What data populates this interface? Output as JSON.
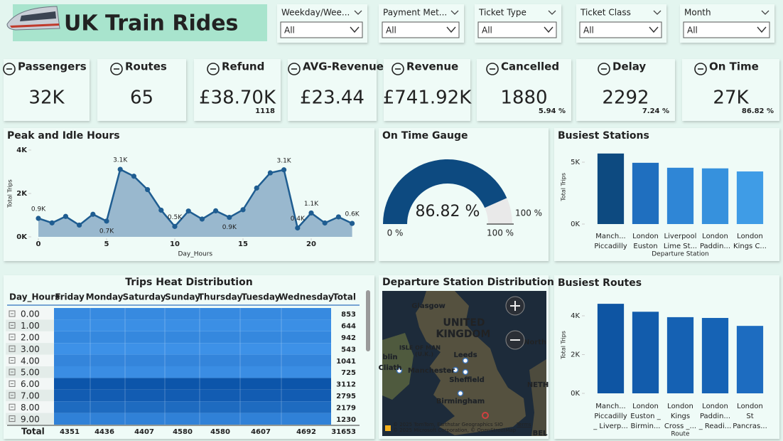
{
  "header": {
    "title": "UK Train Rides"
  },
  "slicers": [
    {
      "label": "Weekday/Wee...",
      "value": "All"
    },
    {
      "label": "Payment Met...",
      "value": "All"
    },
    {
      "label": "Ticket Type",
      "value": "All"
    },
    {
      "label": "Ticket Class",
      "value": "All"
    },
    {
      "label": "Month",
      "value": "All"
    }
  ],
  "kpis": [
    {
      "label": "Passengers",
      "value": "32K"
    },
    {
      "label": "Routes",
      "value": "65"
    },
    {
      "label": "Refund",
      "value": "£38.70K",
      "sub": "1118"
    },
    {
      "label": "AVG-Revenue",
      "value": "£23.44"
    },
    {
      "label": "Revenue",
      "value": "£741.92K"
    },
    {
      "label": "Cancelled",
      "value": "1880",
      "sub": "5.94 %"
    },
    {
      "label": "Delay",
      "value": "2292",
      "sub": "7.24 %"
    },
    {
      "label": "On Time",
      "value": "27K",
      "sub": "86.82 %"
    }
  ],
  "chart_data": [
    {
      "type": "line",
      "title": "Peak and Idle Hours",
      "x_label": "Day_Hours",
      "y_label": "Total Trips",
      "x": [
        0,
        1,
        2,
        3,
        4,
        5,
        6,
        7,
        8,
        9,
        10,
        11,
        12,
        13,
        14,
        15,
        16,
        17,
        18,
        19,
        20,
        21,
        22,
        23
      ],
      "values": [
        853,
        644,
        942,
        543,
        1041,
        725,
        3112,
        2795,
        2179,
        1230,
        480,
        1190,
        820,
        1200,
        900,
        1250,
        2250,
        2950,
        3090,
        410,
        1100,
        640,
        920,
        620
      ],
      "value_labels": [
        "0.9K",
        null,
        null,
        null,
        null,
        "0.7K",
        "3.1K",
        null,
        null,
        null,
        "0.5K",
        null,
        null,
        null,
        "0.9K",
        null,
        null,
        null,
        "3.1K",
        "0.4K",
        "1.1K",
        null,
        null,
        "0.6K"
      ],
      "color": "#1f5d91",
      "area_color": "#8fb0c9",
      "xlim": [
        0,
        23
      ],
      "xticks": [
        0,
        5,
        10,
        15,
        20
      ],
      "ylim": [
        0,
        4000
      ],
      "yticks": [
        {
          "value": 0,
          "label": "0K"
        },
        {
          "value": 2000,
          "label": "2K"
        },
        {
          "value": 4000,
          "label": "4K"
        }
      ]
    },
    {
      "type": "gauge",
      "title": "On Time Gauge",
      "value": 86.82,
      "value_label": "86.82 %",
      "min": 0,
      "min_label": "0 %",
      "max": 100,
      "max_label": "100 %",
      "target": 100,
      "target_label": "100 %",
      "color": "#0d4a80",
      "track_color": "#e9e9e9"
    },
    {
      "type": "bar",
      "title": "Busiest Stations",
      "x_label": "Departure Station",
      "y_label": "Total Trips",
      "categories": [
        [
          "Manch...",
          "Piccadilly"
        ],
        [
          "London",
          "Euston"
        ],
        [
          "Liverpool",
          "Lime St..."
        ],
        [
          "London",
          "Paddin..."
        ],
        [
          "London",
          "Kings C..."
        ]
      ],
      "values": [
        5700,
        4950,
        4550,
        4500,
        4250
      ],
      "colors": [
        "#0d4a80",
        "#1f6fbf",
        "#2f86d6",
        "#3691dd",
        "#3f9ce6"
      ],
      "ylim": [
        0,
        6000
      ],
      "yticks": [
        {
          "value": 0,
          "label": "0K"
        },
        {
          "value": 5000,
          "label": "5K"
        }
      ]
    },
    {
      "type": "bar",
      "title": "Busiest Routes",
      "x_label": "Route",
      "y_label": "Total Trips",
      "categories": [
        [
          "Manch...",
          "Piccadilly",
          "_ Liverp..."
        ],
        [
          "London",
          "Euston _",
          "Birmin..."
        ],
        [
          "London",
          "Kings",
          "Cross _..."
        ],
        [
          "London",
          "Paddin...",
          "_ Readi..."
        ],
        [
          "London",
          "St",
          "Pancras..."
        ]
      ],
      "values": [
        4620,
        4210,
        3930,
        3890,
        3480
      ],
      "colors": [
        "#0e55a3",
        "#125cac",
        "#1561b3",
        "#1663b5",
        "#1d6cc0"
      ],
      "ylim": [
        0,
        5000
      ],
      "yticks": [
        {
          "value": 0,
          "label": "0K"
        },
        {
          "value": 2000,
          "label": "2K"
        },
        {
          "value": 4000,
          "label": "4K"
        }
      ]
    }
  ],
  "table": {
    "title": "Trips Heat Distribution",
    "columns": [
      "Day_Hours",
      "Friday",
      "Monday",
      "Saturday",
      "Sunday",
      "Thursday",
      "Tuesday",
      "Wednesday",
      "Total"
    ],
    "rows": [
      [
        "0.00",
        853
      ],
      [
        "1.00",
        644
      ],
      [
        "2.00",
        942
      ],
      [
        "3.00",
        543
      ],
      [
        "4.00",
        1041
      ],
      [
        "5.00",
        725
      ],
      [
        "6.00",
        3112
      ],
      [
        "7.00",
        2795
      ],
      [
        "8.00",
        2179
      ],
      [
        "9.00",
        1230
      ]
    ],
    "total": [
      "Total",
      4351,
      4436,
      4407,
      4580,
      4580,
      4607,
      4692,
      31653
    ]
  },
  "map": {
    "title": "Departure Station Distribution",
    "labels": [
      "Glasgow",
      "UNITED",
      "KINGDOM",
      "ISLE OF MAN",
      "(U.K.)",
      "Leeds",
      "Manchester",
      "Sheffield",
      "Birmingham",
      "North",
      "NETH",
      "blin",
      "Cliath",
      "BEL"
    ],
    "attribution": [
      "© 2025 TomTom, Earthstar Geographics SIO",
      "© 2025 Microsoft Corporation, © OpenStreetMap"
    ],
    "terms": "Terms"
  }
}
